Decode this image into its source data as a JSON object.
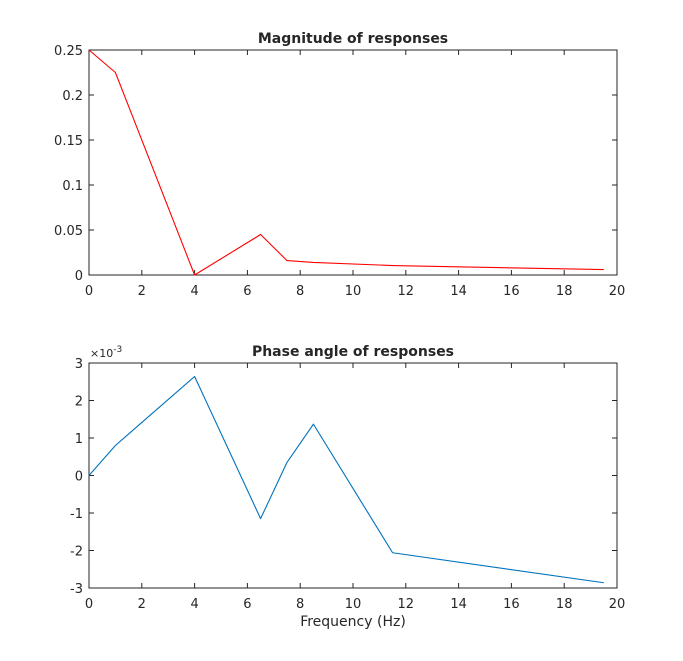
{
  "chart_data": [
    {
      "type": "line",
      "title": "Magnitude of responses",
      "xlabel": "",
      "ylabel": "",
      "xlim": [
        0,
        20
      ],
      "ylim": [
        0,
        0.25
      ],
      "xticks": [
        0,
        2,
        4,
        6,
        8,
        10,
        12,
        14,
        16,
        18,
        20
      ],
      "yticks": [
        0,
        0.05,
        0.1,
        0.15,
        0.2,
        0.25
      ],
      "xtick_labels": [
        "0",
        "2",
        "4",
        "6",
        "8",
        "10",
        "12",
        "14",
        "16",
        "18",
        "20"
      ],
      "ytick_labels": [
        "0",
        "0.05",
        "0.1",
        "0.15",
        "0.2",
        "0.25"
      ],
      "grid": false,
      "series": [
        {
          "color": "#ff0000",
          "x": [
            0,
            1,
            4,
            6.5,
            7.5,
            8.5,
            11.5,
            19.5
          ],
          "y": [
            0.25,
            0.225,
            0,
            0.045,
            0.016,
            0.014,
            0.0105,
            0.006
          ]
        }
      ]
    },
    {
      "type": "line",
      "title": "Phase angle of responses",
      "xlabel": "Frequency (Hz)",
      "ylabel": "",
      "y_exponent": "×10",
      "y_exponent_power": "-3",
      "xlim": [
        0,
        20
      ],
      "ylim": [
        -0.003,
        0.003
      ],
      "xticks": [
        0,
        2,
        4,
        6,
        8,
        10,
        12,
        14,
        16,
        18,
        20
      ],
      "yticks": [
        -0.003,
        -0.002,
        -0.001,
        0,
        0.001,
        0.002,
        0.003
      ],
      "xtick_labels": [
        "0",
        "2",
        "4",
        "6",
        "8",
        "10",
        "12",
        "14",
        "16",
        "18",
        "20"
      ],
      "ytick_labels": [
        "-3",
        "-2",
        "-1",
        "0",
        "1",
        "2",
        "3"
      ],
      "grid": false,
      "series": [
        {
          "color": "#0072bd",
          "x": [
            0,
            1,
            4,
            6.5,
            7.5,
            8.5,
            11.5,
            19.5
          ],
          "y": [
            0,
            0.0008,
            0.00264,
            -0.00115,
            0.00035,
            0.00137,
            -0.00206,
            -0.00286
          ]
        }
      ]
    }
  ]
}
